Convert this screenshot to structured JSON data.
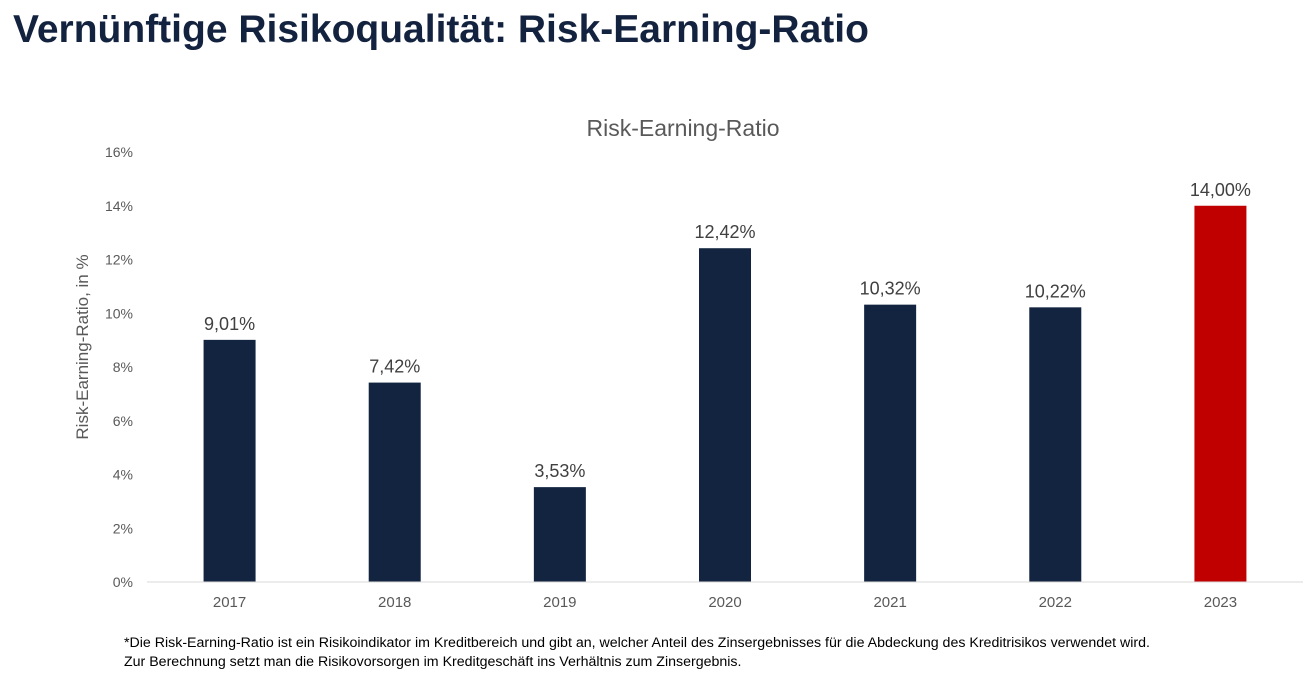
{
  "page": {
    "title": "Vernünftige Risikoqualität: Risk-Earning-Ratio"
  },
  "footnote": {
    "line1": "*Die Risk-Earning-Ratio ist ein Risikoindikator im Kreditbereich und gibt an, welcher Anteil des Zinsergebnisses für die Abdeckung des Kreditrisikos verwendet wird.",
    "line2": "Zur Berechnung setzt man die Risikovorsorgen im Kreditgeschäft ins Verhältnis zum Zinsergebnis."
  },
  "colors": {
    "primary_bar": "#12243f",
    "highlight_bar": "#c00000",
    "title": "#13233f"
  },
  "chart_data": {
    "type": "bar",
    "title": "Risk-Earning-Ratio",
    "ylabel": "Risk-Earning-Ratio, in %",
    "xlabel": "",
    "categories": [
      "2017",
      "2018",
      "2019",
      "2020",
      "2021",
      "2022",
      "2023"
    ],
    "values": [
      9.01,
      7.42,
      3.53,
      12.42,
      10.32,
      10.22,
      14.0
    ],
    "data_labels": [
      "9,01%",
      "7,42%",
      "3,53%",
      "12,42%",
      "10,32%",
      "10,22%",
      "14,00%"
    ],
    "highlight_index": 6,
    "ylim": [
      0,
      16
    ],
    "yticks": [
      0,
      2,
      4,
      6,
      8,
      10,
      12,
      14,
      16
    ],
    "ytick_labels": [
      "0%",
      "2%",
      "4%",
      "6%",
      "8%",
      "10%",
      "12%",
      "14%",
      "16%"
    ],
    "grid": false,
    "legend": "none"
  }
}
